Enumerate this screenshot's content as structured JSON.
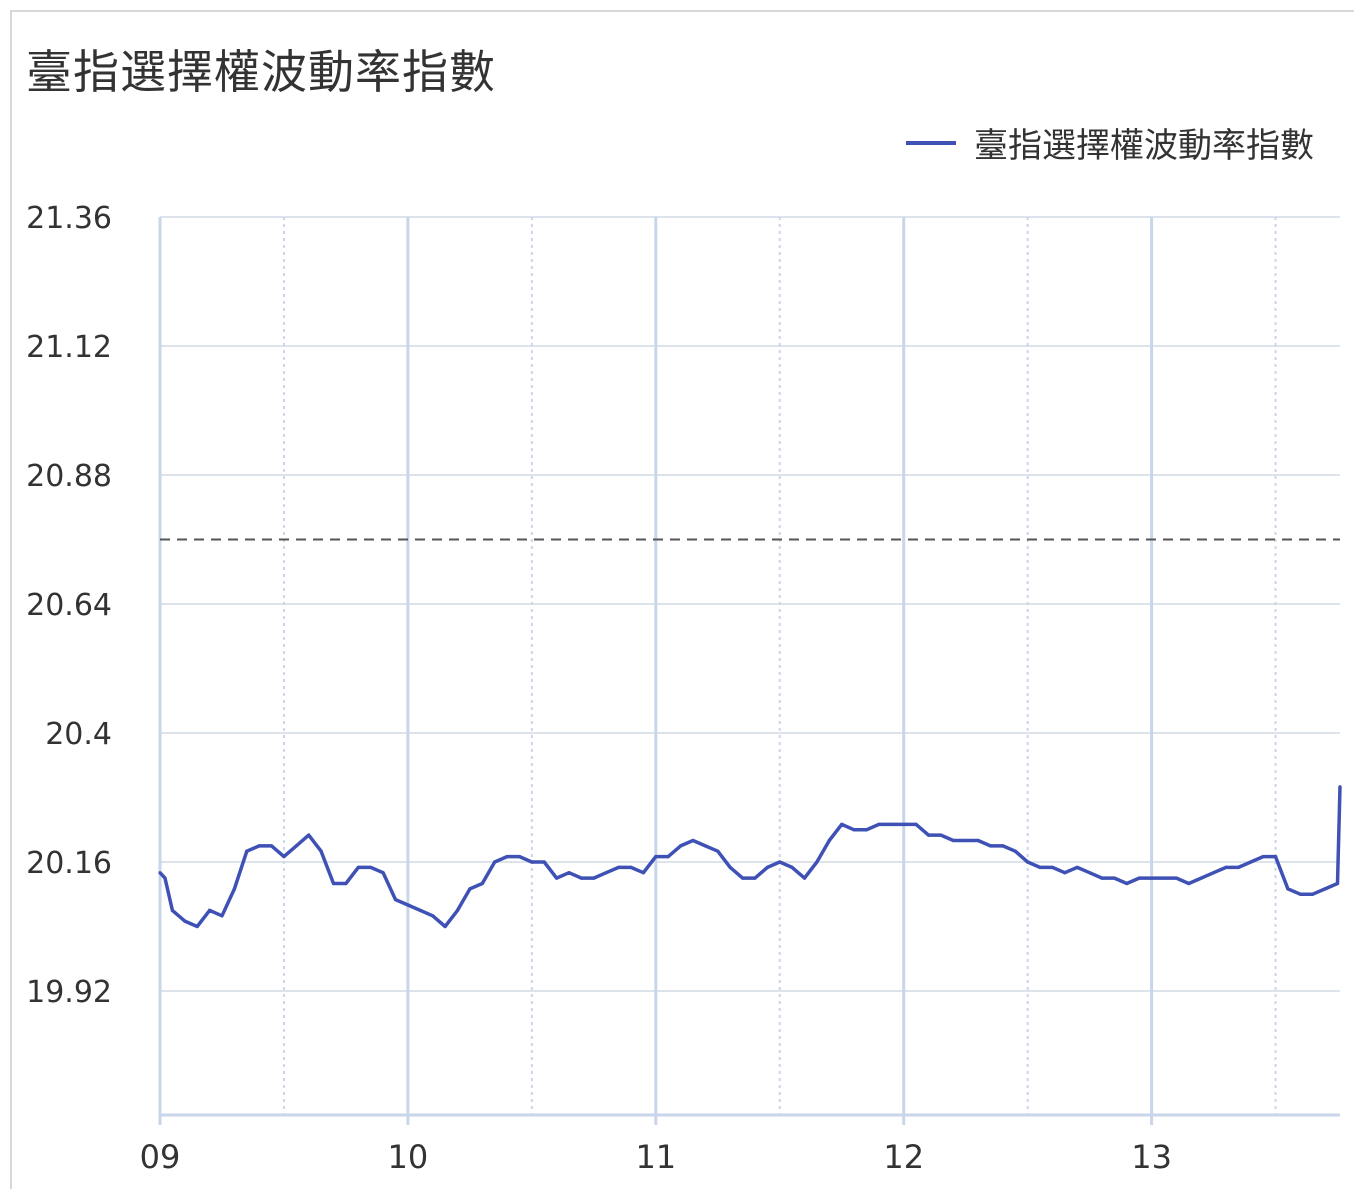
{
  "title": "臺指選擇權波動率指數",
  "legend": {
    "label": "臺指選擇權波動率指數",
    "color": "#3f51b5"
  },
  "colors": {
    "line": "#3f51b5",
    "grid_major": "#c9d6ea",
    "grid_h": "#dde3ea",
    "reference": "#555555"
  },
  "chart_data": {
    "type": "line",
    "title": "臺指選擇權波動率指數",
    "series": [
      {
        "name": "臺指選擇權波動率指數",
        "x": [
          9.0,
          9.02,
          9.05,
          9.1,
          9.15,
          9.2,
          9.25,
          9.3,
          9.35,
          9.4,
          9.45,
          9.5,
          9.55,
          9.6,
          9.65,
          9.7,
          9.75,
          9.8,
          9.85,
          9.9,
          9.95,
          10.0,
          10.05,
          10.1,
          10.15,
          10.2,
          10.25,
          10.3,
          10.35,
          10.4,
          10.45,
          10.5,
          10.55,
          10.6,
          10.65,
          10.7,
          10.75,
          10.8,
          10.85,
          10.9,
          10.95,
          11.0,
          11.05,
          11.1,
          11.15,
          11.2,
          11.25,
          11.3,
          11.35,
          11.4,
          11.45,
          11.5,
          11.55,
          11.6,
          11.65,
          11.7,
          11.75,
          11.8,
          11.85,
          11.9,
          11.95,
          12.0,
          12.05,
          12.1,
          12.15,
          12.2,
          12.25,
          12.3,
          12.35,
          12.4,
          12.45,
          12.5,
          12.55,
          12.6,
          12.65,
          12.7,
          12.75,
          12.8,
          12.85,
          12.9,
          12.95,
          13.0,
          13.05,
          13.1,
          13.15,
          13.2,
          13.25,
          13.3,
          13.35,
          13.4,
          13.45,
          13.5,
          13.55,
          13.6,
          13.65,
          13.7,
          13.75,
          13.76
        ],
        "y": [
          20.14,
          20.13,
          20.07,
          20.05,
          20.04,
          20.07,
          20.06,
          20.11,
          20.18,
          20.19,
          20.19,
          20.17,
          20.19,
          20.21,
          20.18,
          20.12,
          20.12,
          20.15,
          20.15,
          20.14,
          20.09,
          20.08,
          20.07,
          20.06,
          20.04,
          20.07,
          20.11,
          20.12,
          20.16,
          20.17,
          20.17,
          20.16,
          20.16,
          20.13,
          20.14,
          20.13,
          20.13,
          20.14,
          20.15,
          20.15,
          20.14,
          20.17,
          20.17,
          20.19,
          20.2,
          20.19,
          20.18,
          20.15,
          20.13,
          20.13,
          20.15,
          20.16,
          20.15,
          20.13,
          20.16,
          20.2,
          20.23,
          20.22,
          20.22,
          20.23,
          20.23,
          20.23,
          20.23,
          20.21,
          20.21,
          20.2,
          20.2,
          20.2,
          20.19,
          20.19,
          20.18,
          20.16,
          20.15,
          20.15,
          20.14,
          20.15,
          20.14,
          20.13,
          20.13,
          20.12,
          20.13,
          20.13,
          20.13,
          20.13,
          20.12,
          20.13,
          20.14,
          20.15,
          20.15,
          20.16,
          20.17,
          20.17,
          20.11,
          20.1,
          20.1,
          20.11,
          20.12,
          20.3
        ]
      }
    ],
    "reference_line": 20.76,
    "xlim": [
      9,
      13.76
    ],
    "ylim": [
      19.7,
      21.36
    ],
    "x_ticks": [
      "09",
      "10",
      "11",
      "12",
      "13"
    ],
    "y_ticks": [
      "21.36",
      "21.12",
      "20.88",
      "20.64",
      "20.4",
      "20.16",
      "19.92"
    ],
    "grid": true,
    "legend_position": "top-right"
  }
}
